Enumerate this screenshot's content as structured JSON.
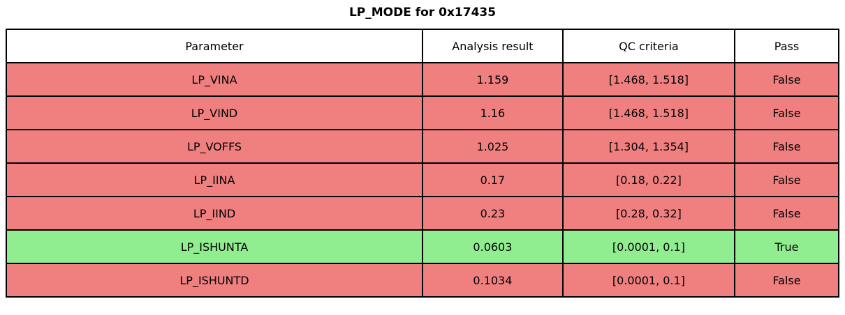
{
  "chart_data": {
    "type": "table",
    "title": "LP_MODE for 0x17435",
    "columns": [
      "Parameter",
      "Analysis result",
      "QC criteria",
      "Pass"
    ],
    "rows": [
      {
        "parameter": "LP_VINA",
        "analysis_result": "1.159",
        "qc_criteria": "[1.468, 1.518]",
        "pass": "False"
      },
      {
        "parameter": "LP_VIND",
        "analysis_result": "1.16",
        "qc_criteria": "[1.468, 1.518]",
        "pass": "False"
      },
      {
        "parameter": "LP_VOFFS",
        "analysis_result": "1.025",
        "qc_criteria": "[1.304, 1.354]",
        "pass": "False"
      },
      {
        "parameter": "LP_IINA",
        "analysis_result": "0.17",
        "qc_criteria": "[0.18, 0.22]",
        "pass": "False"
      },
      {
        "parameter": "LP_IIND",
        "analysis_result": "0.23",
        "qc_criteria": "[0.28, 0.32]",
        "pass": "False"
      },
      {
        "parameter": "LP_ISHUNTA",
        "analysis_result": "0.0603",
        "qc_criteria": "[0.0001, 0.1]",
        "pass": "True"
      },
      {
        "parameter": "LP_ISHUNTD",
        "analysis_result": "0.1034",
        "qc_criteria": "[0.0001, 0.1]",
        "pass": "False"
      }
    ],
    "row_status": [
      "fail",
      "fail",
      "fail",
      "fail",
      "fail",
      "pass",
      "fail"
    ],
    "layout": {
      "grid": false,
      "header_position": "top"
    }
  },
  "colors": {
    "fail_row": "#F08080",
    "pass_row": "#90EE90",
    "header_row": "#FFFFFF",
    "border": "#000000",
    "text": "#000000"
  }
}
